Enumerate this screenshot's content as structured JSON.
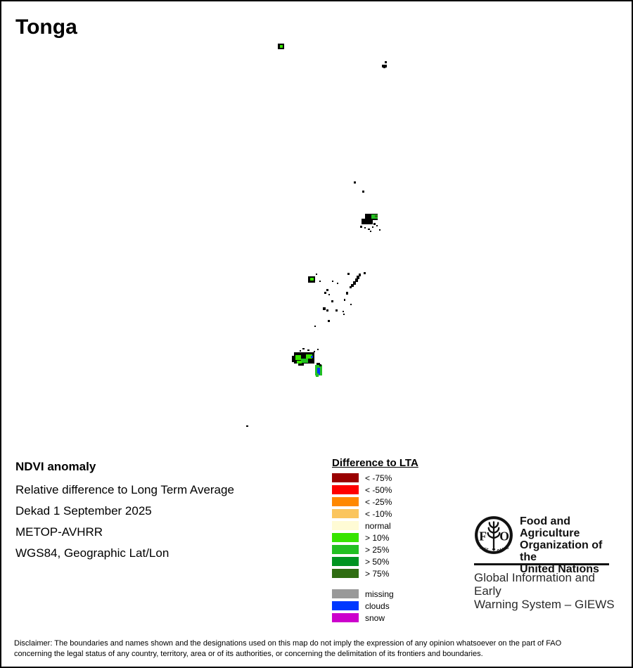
{
  "title": "Tonga",
  "info": {
    "heading": "NDVI anomaly",
    "lines": [
      "Relative difference to Long Term Average",
      "Dekad 1 September 2025",
      "METOP-AVHRR",
      "WGS84, Geographic Lat/Lon"
    ]
  },
  "legend": {
    "title": "Difference to LTA",
    "classes": [
      {
        "label": "< -75%",
        "color": "#990000"
      },
      {
        "label": "< -50%",
        "color": "#ff0000"
      },
      {
        "label": "< -25%",
        "color": "#ff8800"
      },
      {
        "label": "< -10%",
        "color": "#fbc55e"
      },
      {
        "label": "normal",
        "color": "#fffbd5"
      },
      {
        "label": "> 10%",
        "color": "#37e400"
      },
      {
        "label": "> 25%",
        "color": "#22c022"
      },
      {
        "label": "> 50%",
        "color": "#009420"
      },
      {
        "label": "> 75%",
        "color": "#2f6d12"
      }
    ],
    "extra": [
      {
        "label": "missing",
        "color": "#999999"
      },
      {
        "label": "clouds",
        "color": "#0038ff"
      },
      {
        "label": "snow",
        "color": "#cc00cc"
      }
    ]
  },
  "org": {
    "name_lines": [
      "Food and Agriculture",
      "Organization of the",
      "United Nations"
    ],
    "subtitle_lines": [
      "Global Information and Early",
      "Warning System – GIEWS"
    ],
    "logo": {
      "left_letter": "F",
      "right_letter": "O",
      "motto_left": "FIAT",
      "motto_right": "PANIS"
    }
  },
  "disclaimer_lines": [
    "Disclaimer: The boundaries and names shown and the designations used on this map do not imply the expression of any opinion whatsoever on the part of FAO",
    "concerning the legal status of any country, territory, area or of its authorities, or concerning the delimitation of its frontiers and boundaries."
  ],
  "map": {
    "colors": {
      "k": "#000000",
      "g1": "#37e400",
      "g2": "#22c022",
      "g3": "#2f6d12",
      "b": "#0038ff"
    },
    "islands": [
      {
        "name": "island-niuafoou",
        "rects": [
          [
            393,
            60,
            9,
            8,
            "k"
          ],
          [
            396,
            62,
            4,
            4,
            "g1"
          ]
        ]
      },
      {
        "name": "island-tafahi",
        "rects": [
          [
            545,
            85,
            3,
            3,
            "k"
          ]
        ]
      },
      {
        "name": "island-niuatoputapu",
        "rects": [
          [
            541,
            90,
            7,
            4,
            "k"
          ],
          [
            543,
            93,
            3,
            2,
            "k"
          ]
        ]
      },
      {
        "name": "island-north-dots",
        "rects": [
          [
            501,
            256,
            3,
            3,
            "k"
          ],
          [
            513,
            269,
            3,
            3,
            "k"
          ]
        ]
      },
      {
        "name": "island-vavau",
        "rects": [
          [
            517,
            302,
            18,
            9,
            "k"
          ],
          [
            512,
            309,
            16,
            8,
            "k"
          ],
          [
            526,
            303,
            9,
            6,
            "g2"
          ],
          [
            531,
            304,
            4,
            3,
            "g3"
          ],
          [
            529,
            315,
            3,
            3,
            "k"
          ],
          [
            510,
            319,
            3,
            3,
            "k"
          ],
          [
            516,
            321,
            2,
            2,
            "k"
          ],
          [
            521,
            323,
            3,
            2,
            "k"
          ],
          [
            527,
            320,
            2,
            2,
            "k"
          ],
          [
            533,
            318,
            2,
            2,
            "k"
          ],
          [
            537,
            324,
            2,
            2,
            "k"
          ],
          [
            524,
            326,
            2,
            2,
            "k"
          ]
        ]
      },
      {
        "name": "island-tofua-kao",
        "rects": [
          [
            436,
            391,
            10,
            9,
            "k"
          ],
          [
            439,
            393,
            5,
            4,
            "g1"
          ],
          [
            447,
            387,
            2,
            2,
            "k"
          ]
        ]
      },
      {
        "name": "island-haapai-chain",
        "rects": [
          [
            515,
            385,
            3,
            3,
            "k"
          ],
          [
            508,
            387,
            3,
            4,
            "k"
          ],
          [
            505,
            390,
            4,
            5,
            "k"
          ],
          [
            503,
            394,
            4,
            5,
            "k"
          ],
          [
            500,
            398,
            4,
            5,
            "k"
          ],
          [
            497,
            402,
            4,
            4,
            "k"
          ],
          [
            495,
            405,
            3,
            3,
            "k"
          ],
          [
            492,
            386,
            3,
            3,
            "k"
          ]
        ]
      },
      {
        "name": "island-haapai-dots",
        "rects": [
          [
            470,
            397,
            2,
            2,
            "k"
          ],
          [
            477,
            400,
            2,
            2,
            "k"
          ],
          [
            452,
            397,
            2,
            2,
            "k"
          ],
          [
            462,
            409,
            3,
            3,
            "k"
          ],
          [
            459,
            413,
            3,
            3,
            "k"
          ],
          [
            465,
            416,
            2,
            2,
            "k"
          ],
          [
            490,
            413,
            3,
            4,
            "k"
          ],
          [
            469,
            425,
            3,
            3,
            "k"
          ],
          [
            487,
            423,
            2,
            3,
            "k"
          ],
          [
            496,
            430,
            2,
            2,
            "k"
          ],
          [
            457,
            435,
            4,
            4,
            "k"
          ],
          [
            462,
            438,
            3,
            3,
            "k"
          ],
          [
            475,
            438,
            3,
            3,
            "k"
          ],
          [
            485,
            440,
            2,
            2,
            "k"
          ],
          [
            486,
            444,
            2,
            2,
            "k"
          ],
          [
            464,
            453,
            3,
            3,
            "k"
          ],
          [
            445,
            461,
            2,
            2,
            "k"
          ]
        ]
      },
      {
        "name": "island-tongatapu",
        "rects": [
          [
            416,
            499,
            29,
            16,
            "k"
          ],
          [
            413,
            504,
            7,
            9,
            "k"
          ],
          [
            418,
            503,
            8,
            7,
            "g1"
          ],
          [
            426,
            508,
            10,
            6,
            "g2"
          ],
          [
            433,
            502,
            9,
            6,
            "g1"
          ],
          [
            440,
            504,
            3,
            3,
            "b"
          ],
          [
            420,
            511,
            7,
            4,
            "g1"
          ],
          [
            422,
            515,
            8,
            3,
            "k"
          ],
          [
            428,
            493,
            3,
            2,
            "k"
          ],
          [
            435,
            495,
            3,
            2,
            "k"
          ],
          [
            444,
            497,
            2,
            2,
            "k"
          ],
          [
            449,
            494,
            2,
            2,
            "k"
          ],
          [
            424,
            496,
            2,
            2,
            "k"
          ]
        ]
      },
      {
        "name": "island-eua",
        "rects": [
          [
            448,
            514,
            5,
            3,
            "k"
          ],
          [
            446,
            517,
            10,
            15,
            "g2"
          ],
          [
            452,
            516,
            3,
            3,
            "k"
          ],
          [
            449,
            521,
            4,
            10,
            "b"
          ],
          [
            447,
            529,
            4,
            5,
            "g2"
          ]
        ]
      },
      {
        "name": "island-south-dot",
        "rects": [
          [
            348,
            603,
            3,
            2,
            "k"
          ]
        ]
      }
    ]
  }
}
